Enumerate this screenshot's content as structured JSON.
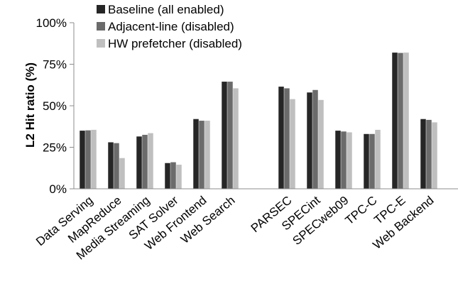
{
  "chart_data": {
    "type": "bar",
    "title": "",
    "xlabel": "",
    "ylabel": "L2 Hit ratio (%)",
    "ylim": [
      0,
      100
    ],
    "yticks": [
      0,
      25,
      50,
      75,
      100
    ],
    "ytick_labels": [
      "0%",
      "25%",
      "50%",
      "75%",
      "100%"
    ],
    "grid": false,
    "legend_position": "top-left",
    "categories": [
      "Data Serving",
      "MapReduce",
      "Media Streaming",
      "SAT Solver",
      "Web Frontend",
      "Web Search",
      "PARSEC",
      "SPECint",
      "SPECweb09",
      "TPC-C",
      "TPC-E",
      "Web Backend"
    ],
    "series": [
      {
        "name": "Baseline (all enabled)",
        "color": "#262626",
        "values": [
          35,
          28,
          31.5,
          15.5,
          42,
          64.5,
          61.5,
          58,
          35,
          33,
          82,
          42
        ]
      },
      {
        "name": "Adjacent-line (disabled)",
        "color": "#6b6b6b",
        "values": [
          35.2,
          27.5,
          32.5,
          16,
          41,
          64.5,
          60.5,
          59.5,
          34.5,
          33,
          81.8,
          41.5
        ]
      },
      {
        "name": "HW prefetcher (disabled)",
        "color": "#bfbfbf",
        "values": [
          35.5,
          18.5,
          33.5,
          14.5,
          41,
          60.5,
          54,
          53.5,
          34,
          35.5,
          82,
          40
        ]
      }
    ]
  }
}
